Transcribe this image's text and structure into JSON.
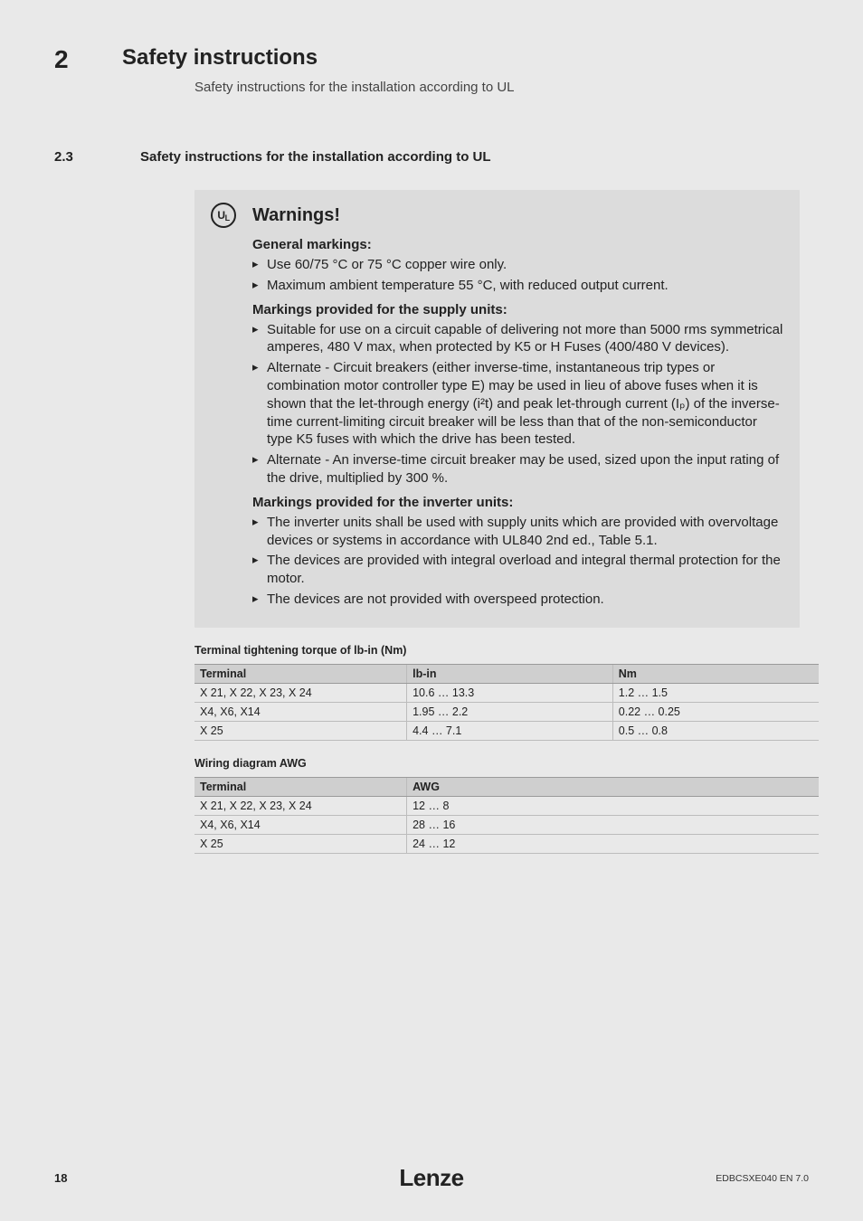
{
  "header": {
    "chapter_number": "2",
    "chapter_title": "Safety instructions",
    "chapter_subtitle": "Safety instructions for the installation according to UL"
  },
  "section": {
    "number": "2.3",
    "title": "Safety instructions for the installation according to UL"
  },
  "warnings": {
    "mark_text": "UL",
    "title": "Warnings!",
    "g1_heading": "General markings:",
    "g1": [
      "Use 60/75 °C or 75 °C copper wire only.",
      "Maximum ambient temperature 55 °C, with reduced output current."
    ],
    "g2_heading": "Markings provided for the supply units:",
    "g2": [
      "Suitable for use on a circuit capable of delivering not more than 5000 rms symmetrical amperes, 480 V max, when protected by K5 or H Fuses (400/480 V devices).",
      "Alternate - Circuit breakers (either inverse-time, instantaneous trip types or combination motor controller type E) may be used in lieu of above fuses when it is shown that the let-through energy (i²t) and peak let-through current (Iₚ) of the inverse-time current-limiting circuit breaker will be less than that of the non-semiconductor type K5 fuses with which the drive has been tested.",
      "Alternate - An inverse-time circuit breaker may be used, sized upon the input rating of the drive, multiplied by 300 %."
    ],
    "g3_heading": "Markings provided for the inverter units:",
    "g3": [
      "The inverter units shall be used with supply units which are provided with overvoltage devices or systems in accordance with UL840 2nd ed., Table 5.1.",
      "The devices are provided with integral overload and integral thermal protection for the motor.",
      "The devices are not provided with overspeed protection."
    ]
  },
  "table1": {
    "title": "Terminal tightening torque of lb-in (Nm)",
    "headers": [
      "Terminal",
      "lb-in",
      "Nm"
    ],
    "rows": [
      [
        "X 21, X 22, X 23, X 24",
        "10.6 … 13.3",
        "1.2 … 1.5"
      ],
      [
        "X4, X6, X14",
        "1.95 … 2.2",
        "0.22 … 0.25"
      ],
      [
        "X 25",
        "4.4 … 7.1",
        "0.5 … 0.8"
      ]
    ]
  },
  "table2": {
    "title": "Wiring diagram AWG",
    "headers": [
      "Terminal",
      "AWG"
    ],
    "rows": [
      [
        "X 21, X 22, X 23, X 24",
        "12 … 8"
      ],
      [
        "X4, X6, X14",
        "28 … 16"
      ],
      [
        "X 25",
        "24 … 12"
      ]
    ]
  },
  "footer": {
    "page": "18",
    "brand": "Lenze",
    "docid": "EDBCSXE040 EN 7.0"
  }
}
